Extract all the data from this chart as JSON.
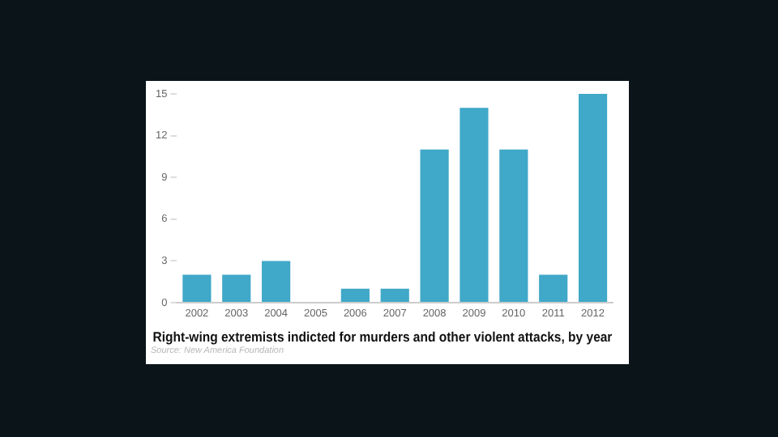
{
  "chart_data": {
    "type": "bar",
    "title": "Right-wing extremists indicted for murders and other violent attacks, by year",
    "categories": [
      "2002",
      "2003",
      "2004",
      "2005",
      "2006",
      "2007",
      "2008",
      "2009",
      "2010",
      "2011",
      "2012"
    ],
    "values": [
      2,
      2,
      3,
      0,
      1,
      1,
      11,
      14,
      11,
      2,
      15
    ],
    "color": "#40a8c8",
    "ylim": [
      0,
      15
    ],
    "yticks": [
      0,
      3,
      6,
      9,
      12,
      15
    ],
    "grid": false,
    "legend": false,
    "annotations": [
      "Source: New America Foundation"
    ]
  }
}
